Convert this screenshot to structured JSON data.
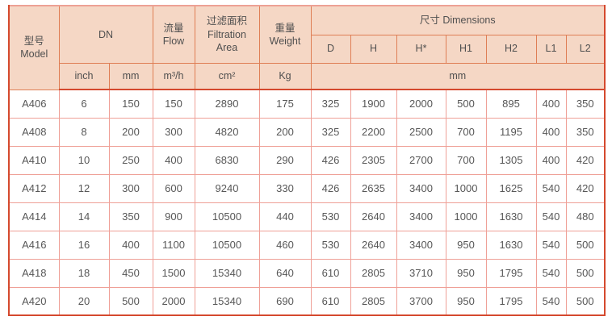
{
  "colors": {
    "header_bg": "#f5d7c5",
    "outer_border": "#d5492e",
    "header_border": "#df7e55",
    "body_border": "#efa097",
    "header_text": "#4f4f4f",
    "body_text": "#575757"
  },
  "table": {
    "header": {
      "model_cn": "型号",
      "model_en": "Model",
      "dn": "DN",
      "flow_cn": "流量",
      "flow_en": "Flow",
      "filtration_cn": "过滤面积",
      "filtration_en1": "Filtration",
      "filtration_en2": "Area",
      "weight_cn": "重量",
      "weight_en": "Weight",
      "dimensions": "尺寸 Dimensions",
      "dim_cols": [
        "D",
        "H",
        "H*",
        "H1",
        "H2",
        "L1",
        "L2"
      ],
      "units": {
        "inch": "inch",
        "mm": "mm",
        "flow": "m³/h",
        "area": "cm²",
        "weight": "Kg",
        "dims": "mm"
      }
    },
    "rows": [
      {
        "model": "A406",
        "values": [
          "6",
          "150",
          "150",
          "2890",
          "175",
          "325",
          "1900",
          "2000",
          "500",
          "895",
          "400",
          "350"
        ]
      },
      {
        "model": "A408",
        "values": [
          "8",
          "200",
          "300",
          "4820",
          "200",
          "325",
          "2200",
          "2500",
          "700",
          "1195",
          "400",
          "350"
        ]
      },
      {
        "model": "A410",
        "values": [
          "10",
          "250",
          "400",
          "6830",
          "290",
          "426",
          "2305",
          "2700",
          "700",
          "1305",
          "400",
          "420"
        ]
      },
      {
        "model": "A412",
        "values": [
          "12",
          "300",
          "600",
          "9240",
          "330",
          "426",
          "2635",
          "3400",
          "1000",
          "1625",
          "540",
          "420"
        ]
      },
      {
        "model": "A414",
        "values": [
          "14",
          "350",
          "900",
          "10500",
          "440",
          "530",
          "2640",
          "3400",
          "1000",
          "1630",
          "540",
          "480"
        ]
      },
      {
        "model": "A416",
        "values": [
          "16",
          "400",
          "1100",
          "10500",
          "460",
          "530",
          "2640",
          "3400",
          "950",
          "1630",
          "540",
          "500"
        ]
      },
      {
        "model": "A418",
        "values": [
          "18",
          "450",
          "1500",
          "15340",
          "640",
          "610",
          "2805",
          "3710",
          "950",
          "1795",
          "540",
          "500"
        ]
      },
      {
        "model": "A420",
        "values": [
          "20",
          "500",
          "2000",
          "15340",
          "690",
          "610",
          "2805",
          "3700",
          "950",
          "1795",
          "540",
          "500"
        ]
      }
    ]
  }
}
